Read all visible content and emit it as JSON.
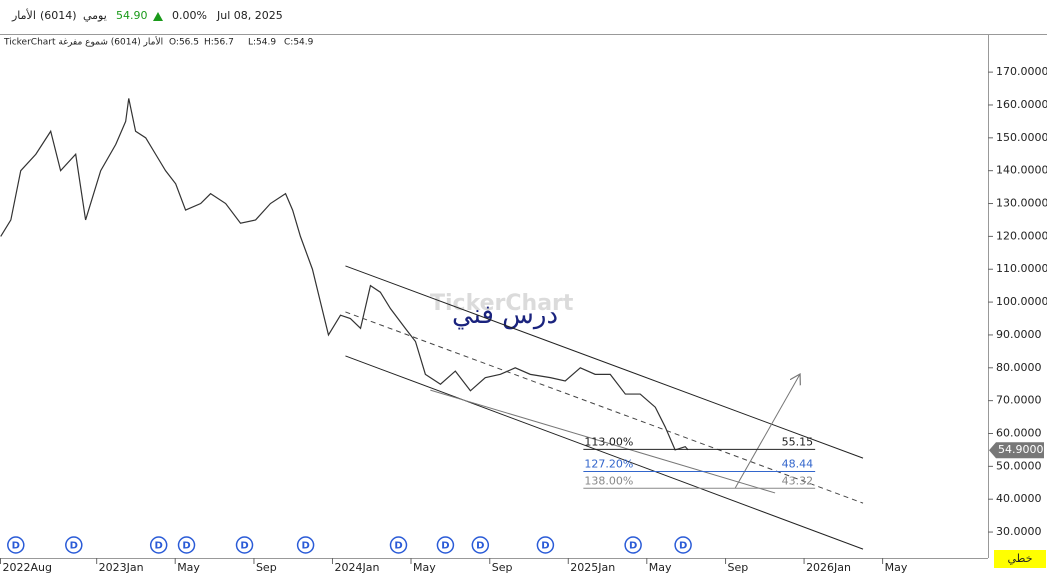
{
  "header": {
    "symbol": "الأمار",
    "code": "(6014)",
    "period": "يومي",
    "price": "54.90",
    "change": "0.00%",
    "date": "Jul 08, 2025"
  },
  "legend_line": {
    "title": "TickerChart الأمار (6014) شموع مفرغة",
    "open": "O:56.5",
    "high": "H:56.7",
    "low": "L:54.9",
    "close": "C:54.9"
  },
  "chart_data": {
    "type": "line",
    "watermark": "TickerChart",
    "annotation_text": "درس فني",
    "series": [
      {
        "name": "الأمار (6014)",
        "color": "#333333",
        "x": [
          2022.593,
          2022.636,
          2022.678,
          2022.742,
          2022.805,
          2022.847,
          2022.911,
          2022.953,
          2023.017,
          2023.081,
          2023.123,
          2023.136,
          2023.165,
          2023.208,
          2023.25,
          2023.292,
          2023.335,
          2023.377,
          2023.441,
          2023.483,
          2023.547,
          2023.61,
          2023.674,
          2023.737,
          2023.801,
          2023.831,
          2023.864,
          2023.915,
          2023.949,
          2023.983,
          2024.034,
          2024.076,
          2024.119,
          2024.161,
          2024.203,
          2024.246,
          2024.309,
          2024.352,
          2024.394,
          2024.458,
          2024.521,
          2024.585,
          2024.648,
          2024.712,
          2024.775,
          2024.839,
          2024.924,
          2024.987,
          2025.051,
          2025.114,
          2025.178,
          2025.242,
          2025.305,
          2025.369,
          2025.411,
          2025.453,
          2025.496,
          2025.508
        ],
        "values": [
          120,
          125,
          140,
          145,
          152,
          140,
          145,
          125,
          140,
          148,
          155,
          162,
          152,
          150,
          145,
          140,
          136,
          128,
          130,
          133,
          130,
          124,
          125,
          130,
          133,
          128,
          120,
          110,
          100,
          90,
          96,
          95,
          92,
          105,
          103,
          98,
          92,
          88,
          78,
          75,
          79,
          73,
          77,
          78,
          80,
          78,
          77,
          76,
          80,
          78,
          78,
          72,
          72,
          68,
          62,
          55,
          56,
          55
        ]
      }
    ],
    "xlim": [
      2022.59,
      2026.78
    ],
    "ylim": [
      22.1,
      181.3
    ],
    "xticks": [
      {
        "value": 2022.583,
        "label": "2022Aug"
      },
      {
        "value": 2023.0,
        "label": "2023Jan"
      },
      {
        "value": 2023.333,
        "label": "May"
      },
      {
        "value": 2023.667,
        "label": "Sep"
      },
      {
        "value": 2024.0,
        "label": "2024Jan"
      },
      {
        "value": 2024.333,
        "label": "May"
      },
      {
        "value": 2024.667,
        "label": "Sep"
      },
      {
        "value": 2025.0,
        "label": "2025Jan"
      },
      {
        "value": 2025.333,
        "label": "May"
      },
      {
        "value": 2025.667,
        "label": "Sep"
      },
      {
        "value": 2026.0,
        "label": "2026Jan"
      },
      {
        "value": 2026.333,
        "label": "May"
      }
    ],
    "yticks": [
      {
        "value": 30,
        "label": "30.0000"
      },
      {
        "value": 40,
        "label": "40.0000"
      },
      {
        "value": 50,
        "label": "50.0000"
      },
      {
        "value": 60,
        "label": "60.0000"
      },
      {
        "value": 70,
        "label": "70.0000"
      },
      {
        "value": 80,
        "label": "80.0000"
      },
      {
        "value": 90,
        "label": "90.0000"
      },
      {
        "value": 100,
        "label": "100.0000"
      },
      {
        "value": 110,
        "label": "110.0000"
      },
      {
        "value": 120,
        "label": "120.0000"
      },
      {
        "value": 130,
        "label": "130.0000"
      },
      {
        "value": 140,
        "label": "140.0000"
      },
      {
        "value": 150,
        "label": "150.0000"
      },
      {
        "value": 160,
        "label": "160.0000"
      },
      {
        "value": 170,
        "label": "170.0000"
      }
    ],
    "last_price": {
      "value": 54.9,
      "label": "54.9000"
    },
    "drawings": [
      {
        "style": "solid",
        "color": "#222222",
        "x": [
          2024.055,
          2026.25
        ],
        "y": [
          111,
          52.5
        ]
      },
      {
        "style": "solid",
        "color": "#222222",
        "x": [
          2024.055,
          2026.25
        ],
        "y": [
          83.6,
          24.8
        ]
      },
      {
        "style": "dashed",
        "color": "#444444",
        "x": [
          2024.055,
          2026.25
        ],
        "y": [
          97,
          38.8
        ]
      },
      {
        "style": "solid",
        "color": "#777777",
        "x": [
          2024.415,
          2025.877
        ],
        "y": [
          73.2,
          41.9
        ]
      },
      {
        "style": "arrow",
        "color": "#777777",
        "x": [
          2025.708,
          2025.983
        ],
        "y": [
          43.4,
          78.1
        ]
      }
    ],
    "fib_levels": [
      {
        "label": "113.00%",
        "value": 55.15,
        "color": "#222222",
        "x": [
          2025.064,
          2026.047
        ]
      },
      {
        "label": "127.20%",
        "value": 48.44,
        "color": "#3366cc",
        "x": [
          2025.064,
          2026.047
        ]
      },
      {
        "label": "138.00%",
        "value": 43.32,
        "color": "#888888",
        "x": [
          2025.064,
          2026.047
        ]
      }
    ],
    "dividend_label": "D",
    "dividend_x": [
      2022.657,
      2022.903,
      2023.263,
      2023.381,
      2023.627,
      2023.886,
      2024.28,
      2024.479,
      2024.627,
      2024.903,
      2025.275,
      2025.487
    ],
    "chart_style_button": "خطي"
  }
}
